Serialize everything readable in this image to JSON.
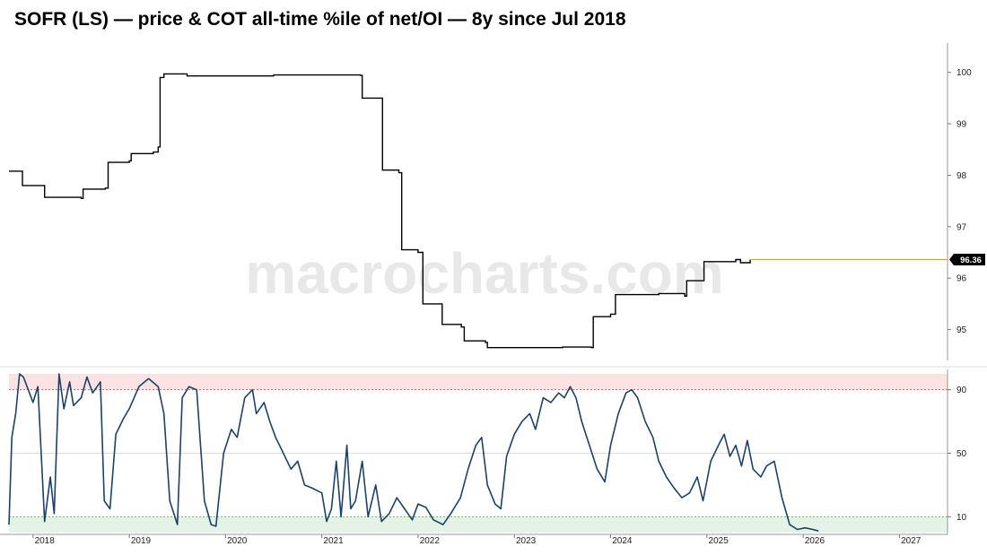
{
  "chart_data": [
    {
      "type": "line",
      "title": "SOFR (LS) — price & COT all-time %ile of net/OI — 8y since Jul 2018",
      "ylim": [
        94.4,
        100.5
      ],
      "y_ticks": [
        "95",
        "96",
        "97",
        "98",
        "99",
        "100"
      ],
      "last_value": 96.36,
      "last_value_label": "96.36",
      "colors": {
        "line": "#000000",
        "last_value_line": "#e0a400",
        "last_value_tag": "#000000"
      },
      "watermark": "macrocharts.com",
      "series": [
        {
          "values": [
            [
              2017.75,
              98.08
            ],
            [
              2017.88,
              98.08
            ],
            [
              2017.89,
              97.8
            ],
            [
              2018.1,
              97.8
            ],
            [
              2018.12,
              97.57
            ],
            [
              2018.5,
              97.55
            ],
            [
              2018.52,
              97.73
            ],
            [
              2018.75,
              97.75
            ],
            [
              2018.78,
              98.25
            ],
            [
              2019.0,
              98.28
            ],
            [
              2019.02,
              98.42
            ],
            [
              2019.25,
              98.45
            ],
            [
              2019.3,
              98.55
            ],
            [
              2019.32,
              99.9
            ],
            [
              2019.36,
              99.97
            ],
            [
              2019.6,
              99.93
            ],
            [
              2020.0,
              99.93
            ],
            [
              2020.5,
              99.95
            ],
            [
              2021.0,
              99.95
            ],
            [
              2021.4,
              99.94
            ],
            [
              2021.42,
              99.5
            ],
            [
              2021.6,
              99.5
            ],
            [
              2021.63,
              98.1
            ],
            [
              2021.8,
              98.05
            ],
            [
              2021.83,
              96.55
            ],
            [
              2022.0,
              96.5
            ],
            [
              2022.05,
              95.5
            ],
            [
              2022.2,
              95.5
            ],
            [
              2022.25,
              95.1
            ],
            [
              2022.45,
              95.05
            ],
            [
              2022.48,
              94.78
            ],
            [
              2022.7,
              94.75
            ],
            [
              2022.72,
              94.65
            ],
            [
              2023.0,
              94.65
            ],
            [
              2023.5,
              94.66
            ],
            [
              2023.8,
              94.65
            ],
            [
              2023.82,
              95.25
            ],
            [
              2024.0,
              95.3
            ],
            [
              2024.05,
              95.68
            ],
            [
              2024.5,
              95.7
            ],
            [
              2024.77,
              95.65
            ],
            [
              2024.79,
              95.95
            ],
            [
              2024.95,
              95.95
            ],
            [
              2024.97,
              96.32
            ],
            [
              2025.3,
              96.36
            ],
            [
              2025.35,
              96.3
            ],
            [
              2025.45,
              96.36
            ]
          ]
        }
      ]
    },
    {
      "type": "line",
      "ylim": [
        0,
        100
      ],
      "y_ticks": [
        "10",
        "50",
        "90"
      ],
      "x_ticks": [
        "2018",
        "2019",
        "2020",
        "2021",
        "2022",
        "2023",
        "2024",
        "2025",
        "2026",
        "2027"
      ],
      "bands": [
        {
          "from": 90,
          "to": 100,
          "color": "#fbe3e3"
        },
        {
          "from": 0,
          "to": 10,
          "color": "#e4f3e6"
        }
      ],
      "colors": {
        "line": "#1c4268",
        "band_top_line": "#c0504d",
        "band_bottom_line": "#4caf50"
      },
      "series": [
        {
          "values": [
            [
              2017.75,
              5
            ],
            [
              2017.78,
              60
            ],
            [
              2017.82,
              75
            ],
            [
              2017.86,
              100
            ],
            [
              2017.9,
              98
            ],
            [
              2017.95,
              90
            ],
            [
              2018.0,
              82
            ],
            [
              2018.05,
              92
            ],
            [
              2018.12,
              7
            ],
            [
              2018.18,
              35
            ],
            [
              2018.22,
              12
            ],
            [
              2018.27,
              100
            ],
            [
              2018.32,
              78
            ],
            [
              2018.38,
              95
            ],
            [
              2018.42,
              80
            ],
            [
              2018.5,
              85
            ],
            [
              2018.56,
              98
            ],
            [
              2018.62,
              88
            ],
            [
              2018.7,
              95
            ],
            [
              2018.74,
              20
            ],
            [
              2018.8,
              15
            ],
            [
              2018.86,
              62
            ],
            [
              2018.94,
              72
            ],
            [
              2019.0,
              78
            ],
            [
              2019.05,
              85
            ],
            [
              2019.1,
              92
            ],
            [
              2019.2,
              97
            ],
            [
              2019.3,
              92
            ],
            [
              2019.36,
              75
            ],
            [
              2019.42,
              20
            ],
            [
              2019.5,
              5
            ],
            [
              2019.55,
              85
            ],
            [
              2019.62,
              92
            ],
            [
              2019.7,
              90
            ],
            [
              2019.78,
              20
            ],
            [
              2019.85,
              5
            ],
            [
              2019.9,
              4
            ],
            [
              2019.98,
              50
            ],
            [
              2020.06,
              65
            ],
            [
              2020.12,
              60
            ],
            [
              2020.2,
              85
            ],
            [
              2020.28,
              90
            ],
            [
              2020.32,
              75
            ],
            [
              2020.4,
              82
            ],
            [
              2020.46,
              70
            ],
            [
              2020.52,
              60
            ],
            [
              2020.6,
              50
            ],
            [
              2020.68,
              40
            ],
            [
              2020.75,
              45
            ],
            [
              2020.82,
              30
            ],
            [
              2020.9,
              28
            ],
            [
              2021.0,
              25
            ],
            [
              2021.05,
              7
            ],
            [
              2021.1,
              15
            ],
            [
              2021.15,
              45
            ],
            [
              2021.2,
              10
            ],
            [
              2021.26,
              55
            ],
            [
              2021.3,
              15
            ],
            [
              2021.35,
              20
            ],
            [
              2021.42,
              45
            ],
            [
              2021.48,
              10
            ],
            [
              2021.56,
              30
            ],
            [
              2021.62,
              7
            ],
            [
              2021.7,
              12
            ],
            [
              2021.78,
              22
            ],
            [
              2021.86,
              15
            ],
            [
              2021.94,
              8
            ],
            [
              2022.0,
              18
            ],
            [
              2022.08,
              16
            ],
            [
              2022.16,
              8
            ],
            [
              2022.26,
              5
            ],
            [
              2022.34,
              12
            ],
            [
              2022.44,
              22
            ],
            [
              2022.52,
              40
            ],
            [
              2022.6,
              55
            ],
            [
              2022.66,
              60
            ],
            [
              2022.72,
              30
            ],
            [
              2022.8,
              18
            ],
            [
              2022.86,
              15
            ],
            [
              2022.92,
              48
            ],
            [
              2023.0,
              62
            ],
            [
              2023.08,
              70
            ],
            [
              2023.16,
              75
            ],
            [
              2023.22,
              65
            ],
            [
              2023.3,
              85
            ],
            [
              2023.38,
              82
            ],
            [
              2023.46,
              88
            ],
            [
              2023.52,
              85
            ],
            [
              2023.58,
              92
            ],
            [
              2023.64,
              85
            ],
            [
              2023.7,
              70
            ],
            [
              2023.78,
              55
            ],
            [
              2023.86,
              40
            ],
            [
              2023.94,
              32
            ],
            [
              2024.0,
              55
            ],
            [
              2024.08,
              75
            ],
            [
              2024.16,
              88
            ],
            [
              2024.22,
              90
            ],
            [
              2024.28,
              85
            ],
            [
              2024.36,
              70
            ],
            [
              2024.44,
              60
            ],
            [
              2024.5,
              45
            ],
            [
              2024.58,
              35
            ],
            [
              2024.66,
              28
            ],
            [
              2024.74,
              22
            ],
            [
              2024.82,
              25
            ],
            [
              2024.9,
              35
            ],
            [
              2024.96,
              20
            ],
            [
              2025.04,
              45
            ],
            [
              2025.12,
              55
            ],
            [
              2025.18,
              62
            ],
            [
              2025.24,
              48
            ],
            [
              2025.3,
              55
            ],
            [
              2025.36,
              42
            ],
            [
              2025.42,
              58
            ],
            [
              2025.48,
              40
            ],
            [
              2025.56,
              35
            ],
            [
              2025.62,
              42
            ],
            [
              2025.7,
              45
            ],
            [
              2025.78,
              22
            ],
            [
              2025.86,
              5
            ],
            [
              2025.94,
              2
            ],
            [
              2026.02,
              3
            ],
            [
              2026.1,
              2
            ],
            [
              2026.16,
              1
            ]
          ]
        }
      ]
    }
  ]
}
